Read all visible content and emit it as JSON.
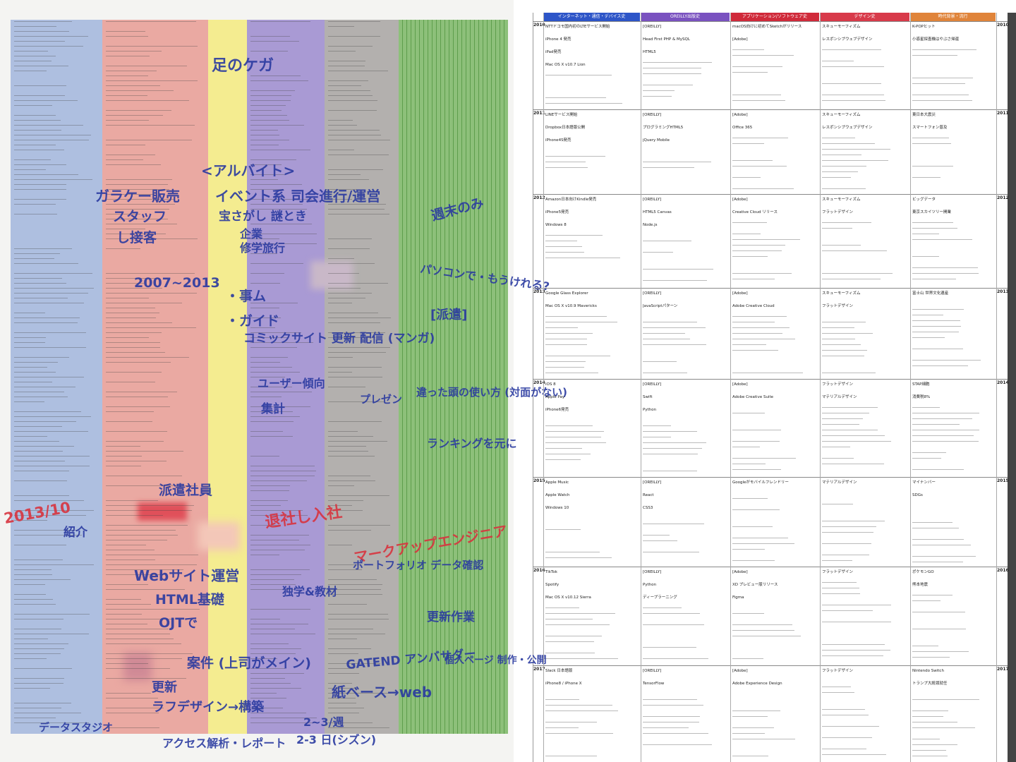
{
  "notes": {
    "annotations": [
      "足のケガ",
      "<アルバイト>",
      "ガラケー販売",
      "イベント系 司会進行/運営",
      "スタッフ",
      "宝さがし 謎とき",
      "し接客",
      "企業",
      "修学旅行",
      "週末のみ",
      "2007~2013",
      "パソコンで・もうけれる?",
      "[派遣]",
      "・事ム",
      "・ガイド",
      "コミックサイト 更新 配信 (マンガ)",
      "ユーザー傾向",
      "集計",
      "プレゼン",
      "違った頭の使い方 (対面がない)",
      "ランキングを元に",
      "派遣社員",
      "2013/10",
      "紹介",
      "退社し入社",
      "マークアップエンジニア",
      "Webサイト運営",
      "ポートフォリオ データ確認",
      "HTML基礎",
      "独学&教材",
      "更新作業",
      "OJTで",
      "案件 (上司がメイン)",
      "GATEND アンバサダー",
      "個人ページ 制作・公開",
      "更新",
      "紙ベース→web",
      "ラフデザイン→構築",
      "2~3/週",
      "アクセス解析・レポート",
      "2-3 日(シズン)",
      "データスタジオ"
    ]
  },
  "table": {
    "headers": [
      "インターネット・通信・デバイス史",
      "OREILLY出版史",
      "アプリケーション/ソフトウェア史",
      "デザイン史",
      "時代背景・流行"
    ],
    "rows": [
      {
        "year": "2010",
        "cells": [
          [
            "NTTドコモ国内初のLTEサービス開始",
            "iPhone 4 発売",
            "iPad発売",
            "Mac OS X v10.7 Lion"
          ],
          [
            "[OREILLY]",
            "Head First PHP & MySQL",
            "HTML5"
          ],
          [
            "macOS向けに初めてSketchがリリース",
            "[Adobe]"
          ],
          [
            "スキューモーフィズム",
            "レスポンシブウェブデザイン"
          ],
          [
            "K-POPヒット",
            "小惑星探査機はやぶさ帰還"
          ]
        ]
      },
      {
        "year": "2011",
        "cells": [
          [
            "LINEサービス開始",
            "Dropbox日本語版公開",
            "iPhone4S発売"
          ],
          [
            "[OREILLY]",
            "プログラミングHTML5",
            "jQuery Mobile"
          ],
          [
            "[Adobe]",
            "Office 365"
          ],
          [
            "スキューモーフィズム",
            "レスポンシブウェブデザイン"
          ],
          [
            "東日本大震災",
            "スマートフォン普及"
          ]
        ]
      },
      {
        "year": "2012",
        "cells": [
          [
            "Amazon日本向けKindle発売",
            "iPhone5発売",
            "Windows 8"
          ],
          [
            "[OREILLY]",
            "HTML5 Canvas",
            "Node.js"
          ],
          [
            "[Adobe]",
            "Creative Cloud リリース"
          ],
          [
            "スキューモーフィズム",
            "フラットデザイン"
          ],
          [
            "ビッグデータ",
            "東京スカイツリー開業"
          ]
        ]
      },
      {
        "year": "2013",
        "cells": [
          [
            "Google Glass Explorer",
            "Mac OS X v10.9 Mavericks"
          ],
          [
            "[OREILLY]",
            "JavaScriptパターン"
          ],
          [
            "[Adobe]",
            "Adobe Creative Cloud"
          ],
          [
            "スキューモーフィズム",
            "フラットデザイン"
          ],
          [
            "富士山 世界文化遺産"
          ]
        ]
      },
      {
        "year": "2014",
        "cells": [
          [
            "iOS 8",
            "Apple Pay",
            "iPhone6発売"
          ],
          [
            "[OREILLY]",
            "Swift",
            "Python"
          ],
          [
            "[Adobe]",
            "Adobe Creative Suite"
          ],
          [
            "フラットデザイン",
            "マテリアルデザイン"
          ],
          [
            "STAP細胞",
            "消費税8%"
          ]
        ]
      },
      {
        "year": "2015",
        "cells": [
          [
            "Apple Music",
            "Apple Watch",
            "Windows 10"
          ],
          [
            "[OREILLY]",
            "React",
            "CSS3"
          ],
          [
            "Googleがモバイルフレンドリー"
          ],
          [
            "マテリアルデザイン"
          ],
          [
            "マイナンバー",
            "SDGs"
          ]
        ]
      },
      {
        "year": "2016",
        "cells": [
          [
            "TikTok",
            "Spotify",
            "Mac OS X v10.12 Sierra"
          ],
          [
            "[OREILLY]",
            "Python",
            "ディープラーニング"
          ],
          [
            "[Adobe]",
            "XD プレビュー版リリース",
            "Figma"
          ],
          [
            "フラットデザイン"
          ],
          [
            "ポケモンGO",
            "熊本地震"
          ]
        ]
      },
      {
        "year": "2017",
        "cells": [
          [
            "Slack 日本語版",
            "iPhone8 / iPhone X"
          ],
          [
            "[OREILLY]",
            "TensorFlow"
          ],
          [
            "[Adobe]",
            "Adobe Experience Design"
          ],
          [
            "フラットデザイン"
          ],
          [
            "Nintendo Switch",
            "トランプ大統領就任"
          ]
        ]
      }
    ]
  }
}
